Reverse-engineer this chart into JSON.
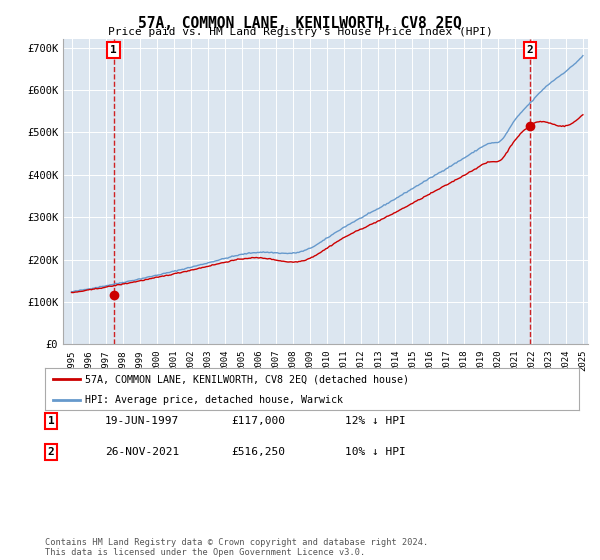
{
  "title": "57A, COMMON LANE, KENILWORTH, CV8 2EQ",
  "subtitle": "Price paid vs. HM Land Registry's House Price Index (HPI)",
  "bg_color": "#dce6f0",
  "red_line_label": "57A, COMMON LANE, KENILWORTH, CV8 2EQ (detached house)",
  "blue_line_label": "HPI: Average price, detached house, Warwick",
  "annotation1_date": "19-JUN-1997",
  "annotation1_price": "£117,000",
  "annotation1_hpi": "12% ↓ HPI",
  "annotation2_date": "26-NOV-2021",
  "annotation2_price": "£516,250",
  "annotation2_hpi": "10% ↓ HPI",
  "footer": "Contains HM Land Registry data © Crown copyright and database right 2024.\nThis data is licensed under the Open Government Licence v3.0.",
  "ylim": [
    0,
    720000
  ],
  "yticks": [
    0,
    100000,
    200000,
    300000,
    400000,
    500000,
    600000,
    700000
  ],
  "ytick_labels": [
    "£0",
    "£100K",
    "£200K",
    "£300K",
    "£400K",
    "£500K",
    "£600K",
    "£700K"
  ],
  "xstart_year": 1995,
  "xend_year": 2025,
  "xticks": [
    1995,
    1996,
    1997,
    1998,
    1999,
    2000,
    2001,
    2002,
    2003,
    2004,
    2005,
    2006,
    2007,
    2008,
    2009,
    2010,
    2011,
    2012,
    2013,
    2014,
    2015,
    2016,
    2017,
    2018,
    2019,
    2020,
    2021,
    2022,
    2023,
    2024,
    2025
  ],
  "point1_x": 1997.47,
  "point1_y": 117000,
  "point2_x": 2021.9,
  "point2_y": 516250,
  "red_color": "#cc0000",
  "blue_color": "#6699cc"
}
